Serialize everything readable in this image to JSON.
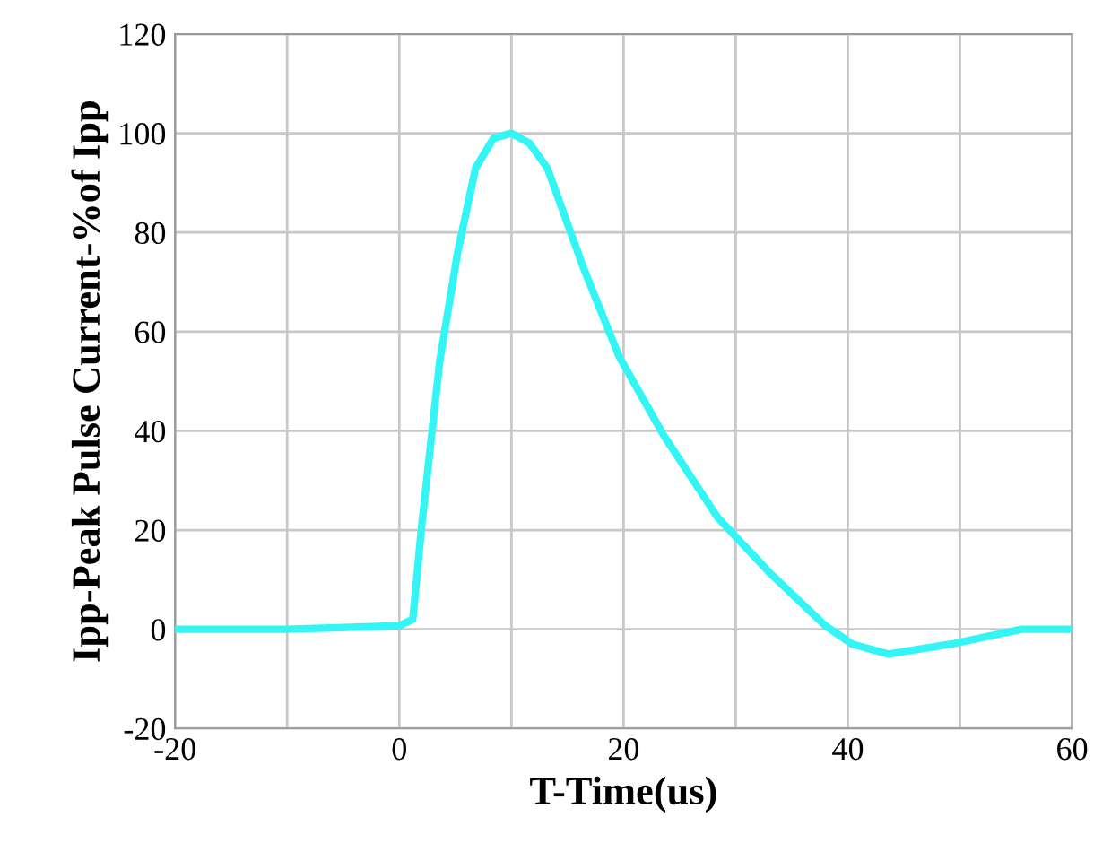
{
  "chart_data": {
    "type": "line",
    "xlabel": "T-Time(us)",
    "ylabel": "Ipp-Peak Pulse Current-%of Ipp",
    "series": [
      {
        "color": "#33f5f5",
        "x": [
          -20,
          -10,
          0,
          1.2,
          2.0,
          3.6,
          5.2,
          6.8,
          8.4,
          10,
          11.6,
          13.2,
          16.4,
          19.6,
          23.6,
          28.4,
          33.2,
          38,
          40.4,
          43.6,
          49.2,
          55.5,
          60
        ],
        "values": [
          0,
          0,
          0.7,
          2,
          21,
          54,
          76,
          93,
          99,
          100,
          98,
          93,
          73,
          55,
          39,
          22.5,
          11,
          0.7,
          -3,
          -5,
          -3,
          0,
          0
        ]
      }
    ],
    "xlim": [
      -20,
      60
    ],
    "ylim": [
      -20,
      120
    ],
    "xticks": [
      -20,
      {
        "value": -10,
        "label": null
      },
      0,
      {
        "value": 10,
        "label": null
      },
      20,
      {
        "value": 30,
        "label": null
      },
      40,
      {
        "value": 50,
        "label": null
      },
      60
    ],
    "yticks": [
      -20,
      0,
      20,
      40,
      60,
      80,
      100,
      120
    ],
    "grid": true,
    "line_style": "solid",
    "marker": "none"
  }
}
